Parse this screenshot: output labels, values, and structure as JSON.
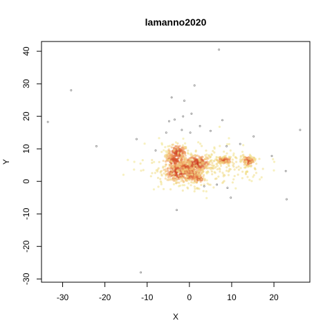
{
  "chart_data": {
    "type": "scatter",
    "title": "lamanno2020",
    "xlabel": "X",
    "ylabel": "Y",
    "xlim": [
      -35,
      28.5
    ],
    "ylim": [
      -31,
      43
    ],
    "x_ticks": [
      -30,
      -20,
      -10,
      0,
      10,
      20
    ],
    "y_ticks": [
      -30,
      -20,
      -10,
      0,
      10,
      20,
      30,
      40
    ],
    "x_tick_labels": [
      "-30",
      "-20",
      "-10",
      "0",
      "10",
      "20"
    ],
    "y_tick_labels": [
      "-30",
      "-20",
      "-10",
      "0",
      "10",
      "20",
      "30",
      "40"
    ],
    "grid": false,
    "legend": "none",
    "density_colors": {
      "low": "#f0e68c",
      "mid": "#f4a460",
      "high": "#cd3b1e"
    },
    "outlier_color": "#8c8c8c",
    "clusters": [
      {
        "cx": -2.8,
        "cy": 8.8,
        "sx": 1.1,
        "sy": 1.3,
        "n": 140,
        "intensity": 0.95
      },
      {
        "cx": -3.5,
        "cy": 6.5,
        "sx": 1.3,
        "sy": 1.0,
        "n": 110,
        "intensity": 0.9
      },
      {
        "cx": -2.5,
        "cy": 2.8,
        "sx": 1.8,
        "sy": 1.5,
        "n": 220,
        "intensity": 0.95
      },
      {
        "cx": 1.8,
        "cy": 5.5,
        "sx": 1.6,
        "sy": 1.3,
        "n": 220,
        "intensity": 1.0
      },
      {
        "cx": 0.5,
        "cy": 2.2,
        "sx": 1.4,
        "sy": 1.1,
        "n": 120,
        "intensity": 0.9
      },
      {
        "cx": -0.8,
        "cy": 4.5,
        "sx": 0.8,
        "sy": 0.8,
        "n": 60,
        "intensity": 0.9
      },
      {
        "cx": 2.2,
        "cy": 0.8,
        "sx": 0.8,
        "sy": 0.6,
        "n": 50,
        "intensity": 0.85
      },
      {
        "cx": 8.2,
        "cy": 6.5,
        "sx": 0.9,
        "sy": 0.5,
        "n": 90,
        "intensity": 0.85
      },
      {
        "cx": 14.0,
        "cy": 6.3,
        "sx": 0.7,
        "sy": 0.8,
        "n": 80,
        "intensity": 0.85
      },
      {
        "cx": 1.0,
        "cy": 4.0,
        "sx": 6.0,
        "sy": 3.5,
        "n": 260,
        "intensity": 0.15
      },
      {
        "cx": 11.0,
        "cy": 5.0,
        "sx": 4.0,
        "sy": 2.5,
        "n": 90,
        "intensity": 0.12
      }
    ],
    "outliers": [
      [
        -33.5,
        18.3
      ],
      [
        -28.0,
        28.0
      ],
      [
        -22.0,
        10.8
      ],
      [
        -12.5,
        13.0
      ],
      [
        -11.5,
        -28.0
      ],
      [
        -4.2,
        25.8
      ],
      [
        -1.2,
        24.8
      ],
      [
        1.2,
        29.5
      ],
      [
        7.0,
        40.5
      ],
      [
        26.2,
        15.8
      ],
      [
        2.5,
        17.0
      ],
      [
        5.0,
        15.5
      ],
      [
        7.8,
        18.8
      ],
      [
        15.2,
        13.8
      ],
      [
        -5.5,
        15.0
      ],
      [
        -3.0,
        -8.8
      ],
      [
        23.0,
        -5.5
      ],
      [
        22.8,
        3.2
      ],
      [
        9.8,
        -5.0
      ],
      [
        -3.5,
        19.0
      ],
      [
        -1.5,
        20.0
      ],
      [
        -4.8,
        18.5
      ],
      [
        0.5,
        20.8
      ],
      [
        12.0,
        11.5
      ],
      [
        19.5,
        7.8
      ],
      [
        -8.0,
        9.5
      ],
      [
        8.8,
        10.8
      ],
      [
        3.5,
        -1.5
      ],
      [
        6.5,
        -1.0
      ],
      [
        9.0,
        -2.0
      ],
      [
        -1.8,
        15.8
      ],
      [
        0.2,
        15.0
      ]
    ]
  }
}
